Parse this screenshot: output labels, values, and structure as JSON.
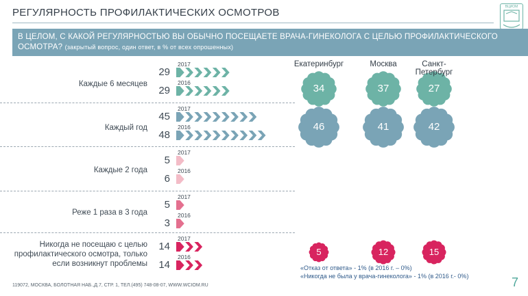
{
  "header": {
    "title": "РЕГУЛЯРНОСТЬ ПРОФИЛАКТИЧЕСКИХ ОСМОТРОВ",
    "logo_text": "ВЦИОМ"
  },
  "question": {
    "text": "В ЦЕЛОМ, С КАКОЙ РЕГУЛЯРНОСТЬЮ ВЫ ОБЫЧНО ПОСЕЩАЕТЕ ВРАЧА-ГИНЕКОЛОГА С ЦЕЛЬЮ ПРОФИЛАКТИЧЕСКОГО ОСМОТРА?",
    "note": "(закрытый вопрос, один ответ, в % от всех опрошенных)"
  },
  "chart_data": {
    "type": "bar",
    "categories": [
      "Каждые 6 месяцев",
      "Каждый год",
      "Каждые 2 года",
      "Реже 1 раза в 3 года",
      "Никогда не посещаю с целью профилактического осмотра, только если возникнут проблемы"
    ],
    "series": [
      {
        "name": "2017",
        "values": [
          29,
          45,
          5,
          5,
          14
        ]
      },
      {
        "name": "2016",
        "values": [
          29,
          48,
          6,
          3,
          14
        ]
      }
    ],
    "colors": [
      "#6db3a6",
      "#7aa4b6",
      "#f3bcc7",
      "#e4708f",
      "#d8245f"
    ],
    "cities": {
      "names": [
        "Екатеринбург",
        "Москва",
        "Санкт-Петербург"
      ],
      "every_6_months": [
        34,
        37,
        27
      ],
      "every_year": [
        46,
        41,
        42
      ],
      "never": [
        5,
        12,
        15
      ]
    }
  },
  "footnotes": [
    "«Отказ от ответа» - 1% (в 2016 г. – 0%)",
    "«Никогда не была у врача-гинеколога» - 1% (в 2016 г.- 0%)"
  ],
  "footer": {
    "address": "119072, МОСКВА, БОЛОТНАЯ НАБ.,Д.7, СТР. 1, ТЕЛ.(495) 748-08-07, WWW.WCIOM.RU",
    "page": "7"
  }
}
